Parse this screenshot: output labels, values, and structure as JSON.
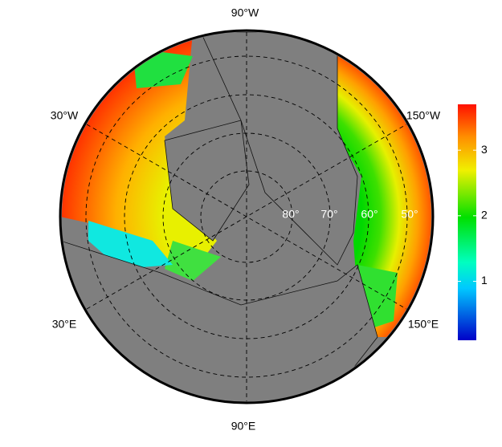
{
  "map": {
    "meridian_labels": [
      "90°W",
      "30°W",
      "150°W",
      "30°E",
      "150°E",
      "90°E"
    ],
    "parallel_labels": [
      "80°",
      "70°",
      "60°",
      "50°"
    ],
    "colorbar": {
      "lim": [
        0.1,
        3.7
      ],
      "ticks": [
        1,
        2,
        3
      ]
    }
  }
}
